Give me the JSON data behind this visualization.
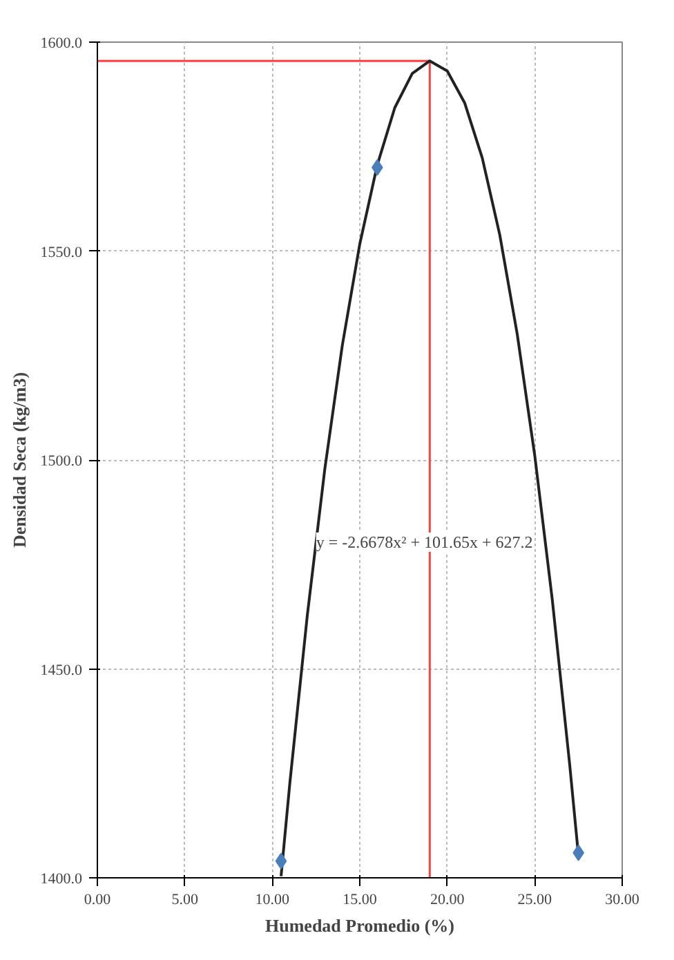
{
  "chart_data": {
    "type": "scatter",
    "xlabel": "Humedad Promedio (%)",
    "ylabel": "Densidad Seca (kg/m3)",
    "xlim": [
      0,
      30
    ],
    "ylim": [
      1400,
      1600
    ],
    "xticks": [
      {
        "value": 0,
        "label": "0.00"
      },
      {
        "value": 5,
        "label": "5.00"
      },
      {
        "value": 10,
        "label": "10.00"
      },
      {
        "value": 15,
        "label": "15.00"
      },
      {
        "value": 20,
        "label": "20.00"
      },
      {
        "value": 25,
        "label": "25.00"
      },
      {
        "value": 30,
        "label": "30.00"
      }
    ],
    "yticks": [
      {
        "value": 1400,
        "label": "1400.0"
      },
      {
        "value": 1450,
        "label": "1450.0"
      },
      {
        "value": 1500,
        "label": "1500.0"
      },
      {
        "value": 1550,
        "label": "1550.0"
      },
      {
        "value": 1600,
        "label": "1600.0"
      }
    ],
    "grid": true,
    "marker": "diamond",
    "series": [
      {
        "color": "#4a7ebb",
        "x": [
          10.5,
          16.0,
          27.5
        ],
        "values": [
          1404,
          1570,
          1406
        ]
      },
      {
        "type": "line",
        "color": "#222222",
        "marker": "none",
        "x": [
          10.5,
          11,
          12,
          13,
          14,
          15,
          16,
          17,
          18,
          19,
          20,
          21,
          22,
          23,
          24,
          25,
          26,
          27,
          27.5
        ],
        "values": [
          1400.4,
          1422.6,
          1462.8,
          1497.8,
          1527.4,
          1551.7,
          1570.6,
          1584.3,
          1592.5,
          1595.5,
          1593.1,
          1585.4,
          1572.3,
          1553.9,
          1530.1,
          1501.1,
          1466.7,
          1427.0,
          1405.3
        ]
      }
    ],
    "ref_lines": [
      {
        "axis": "x",
        "value": 19.0,
        "color": "#ff4040"
      },
      {
        "axis": "y",
        "value": 1595.5,
        "color": "#ff4040"
      }
    ],
    "annotations": [
      {
        "text": "y = -2.6678x² + 101.65x + 627.2",
        "x": 12.5,
        "y": 1478
      }
    ]
  }
}
